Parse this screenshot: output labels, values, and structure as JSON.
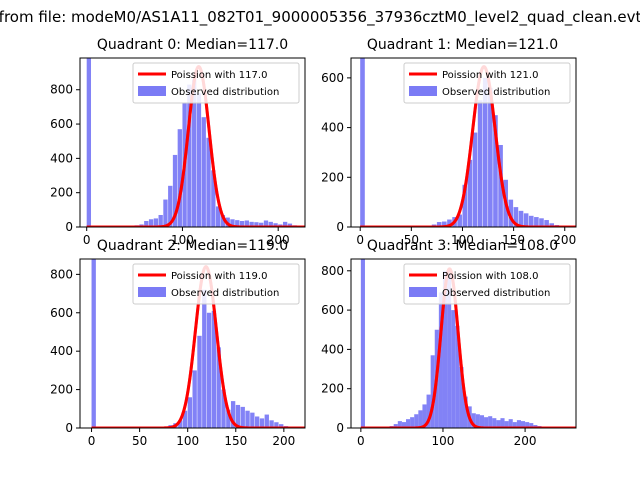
{
  "figure": {
    "suptitle": "from file: modeM0/AS1A11_082T01_9000005356_37936cztM0_level2_quad_clean.evt"
  },
  "colors": {
    "hist": "#7b7bf5",
    "poisson": "#ff0000",
    "background": "#ffffff"
  },
  "chart_data": [
    {
      "type": "bar+line",
      "title": "Quadrant 0: Median=117.0",
      "xlim": [
        -7,
        228
      ],
      "ylim": [
        0,
        985
      ],
      "xticks": [
        0,
        100,
        200
      ],
      "yticks": [
        0,
        200,
        400,
        600,
        800
      ],
      "legend": {
        "placement": "top-right",
        "line_label": "Poission with 117.0",
        "hist_label": "Observed distribution"
      },
      "poisson_mean": 117.0,
      "poisson_peak": 935,
      "histogram": {
        "bin_width": 4.5,
        "bins": [
          [
            0,
            985
          ],
          [
            40,
            2
          ],
          [
            45,
            5
          ],
          [
            50,
            10
          ],
          [
            55,
            15
          ],
          [
            60,
            35
          ],
          [
            65,
            45
          ],
          [
            70,
            50
          ],
          [
            75,
            70
          ],
          [
            80,
            160
          ],
          [
            85,
            240
          ],
          [
            90,
            420
          ],
          [
            95,
            570
          ],
          [
            100,
            720
          ],
          [
            105,
            830
          ],
          [
            110,
            860
          ],
          [
            115,
            780
          ],
          [
            120,
            640
          ],
          [
            125,
            520
          ],
          [
            130,
            330
          ],
          [
            135,
            120
          ],
          [
            140,
            70
          ],
          [
            145,
            55
          ],
          [
            150,
            45
          ],
          [
            155,
            40
          ],
          [
            160,
            35
          ],
          [
            165,
            38
          ],
          [
            170,
            30
          ],
          [
            175,
            28
          ],
          [
            180,
            25
          ],
          [
            185,
            38
          ],
          [
            190,
            30
          ],
          [
            195,
            22
          ],
          [
            200,
            15
          ],
          [
            205,
            30
          ],
          [
            210,
            20
          ],
          [
            215,
            10
          ],
          [
            220,
            5
          ]
        ]
      }
    },
    {
      "type": "bar+line",
      "title": "Quadrant 1: Median=121.0",
      "xlim": [
        -9,
        211
      ],
      "ylim": [
        0,
        680
      ],
      "xticks": [
        0,
        50,
        100,
        150,
        200
      ],
      "yticks": [
        0,
        200,
        400,
        600
      ],
      "legend": {
        "placement": "top-right",
        "line_label": "Poission with 121.0",
        "hist_label": "Observed distribution"
      },
      "poisson_mean": 121.0,
      "poisson_peak": 645,
      "histogram": {
        "bin_width": 4.5,
        "bins": [
          [
            0,
            680
          ],
          [
            60,
            3
          ],
          [
            65,
            5
          ],
          [
            70,
            10
          ],
          [
            75,
            20
          ],
          [
            80,
            22
          ],
          [
            85,
            30
          ],
          [
            90,
            40
          ],
          [
            95,
            50
          ],
          [
            100,
            170
          ],
          [
            105,
            270
          ],
          [
            110,
            380
          ],
          [
            115,
            510
          ],
          [
            120,
            600
          ],
          [
            125,
            560
          ],
          [
            130,
            450
          ],
          [
            135,
            330
          ],
          [
            140,
            190
          ],
          [
            145,
            110
          ],
          [
            150,
            80
          ],
          [
            155,
            65
          ],
          [
            160,
            55
          ],
          [
            165,
            45
          ],
          [
            170,
            40
          ],
          [
            175,
            35
          ],
          [
            180,
            28
          ],
          [
            185,
            15
          ],
          [
            190,
            8
          ]
        ]
      }
    },
    {
      "type": "bar+line",
      "title": "Quadrant 2: Median=119.0",
      "xlim": [
        -12,
        222
      ],
      "ylim": [
        0,
        880
      ],
      "xticks": [
        0,
        50,
        100,
        150,
        200
      ],
      "yticks": [
        0,
        200,
        400,
        600,
        800
      ],
      "legend": {
        "placement": "top-right",
        "line_label": "Poission with 119.0",
        "hist_label": "Observed distribution"
      },
      "poisson_mean": 119.0,
      "poisson_peak": 840,
      "histogram": {
        "bin_width": 4.5,
        "bins": [
          [
            0,
            880
          ],
          [
            70,
            3
          ],
          [
            75,
            8
          ],
          [
            80,
            15
          ],
          [
            85,
            25
          ],
          [
            90,
            40
          ],
          [
            95,
            90
          ],
          [
            100,
            160
          ],
          [
            105,
            300
          ],
          [
            110,
            480
          ],
          [
            115,
            720
          ],
          [
            120,
            600
          ],
          [
            125,
            610
          ],
          [
            130,
            420
          ],
          [
            135,
            200
          ],
          [
            140,
            95
          ],
          [
            145,
            140
          ],
          [
            150,
            120
          ],
          [
            155,
            110
          ],
          [
            160,
            90
          ],
          [
            165,
            80
          ],
          [
            170,
            60
          ],
          [
            175,
            50
          ],
          [
            180,
            70
          ],
          [
            185,
            40
          ],
          [
            190,
            30
          ],
          [
            195,
            20
          ],
          [
            200,
            10
          ],
          [
            205,
            5
          ]
        ]
      }
    },
    {
      "type": "bar+line",
      "title": "Quadrant 3: Median=108.0",
      "xlim": [
        -12,
        262
      ],
      "ylim": [
        0,
        860
      ],
      "xticks": [
        0,
        100,
        200
      ],
      "yticks": [
        0,
        200,
        400,
        600,
        800
      ],
      "legend": {
        "placement": "top-right",
        "line_label": "Poission with 108.0",
        "hist_label": "Observed distribution"
      },
      "poisson_mean": 108.0,
      "poisson_peak": 810,
      "histogram": {
        "bin_width": 5,
        "bins": [
          [
            0,
            860
          ],
          [
            30,
            5
          ],
          [
            35,
            10
          ],
          [
            40,
            20
          ],
          [
            45,
            35
          ],
          [
            50,
            30
          ],
          [
            55,
            45
          ],
          [
            60,
            55
          ],
          [
            65,
            70
          ],
          [
            70,
            90
          ],
          [
            75,
            120
          ],
          [
            80,
            170
          ],
          [
            85,
            370
          ],
          [
            90,
            500
          ],
          [
            95,
            690
          ],
          [
            100,
            800
          ],
          [
            105,
            790
          ],
          [
            110,
            600
          ],
          [
            115,
            520
          ],
          [
            120,
            310
          ],
          [
            125,
            160
          ],
          [
            130,
            110
          ],
          [
            135,
            75
          ],
          [
            140,
            70
          ],
          [
            145,
            65
          ],
          [
            150,
            55
          ],
          [
            155,
            60
          ],
          [
            160,
            50
          ],
          [
            165,
            40
          ],
          [
            170,
            50
          ],
          [
            175,
            35
          ],
          [
            180,
            45
          ],
          [
            185,
            30
          ],
          [
            190,
            40
          ],
          [
            195,
            35
          ],
          [
            200,
            30
          ],
          [
            205,
            25
          ],
          [
            210,
            15
          ],
          [
            215,
            10
          ],
          [
            220,
            5
          ]
        ]
      }
    }
  ]
}
